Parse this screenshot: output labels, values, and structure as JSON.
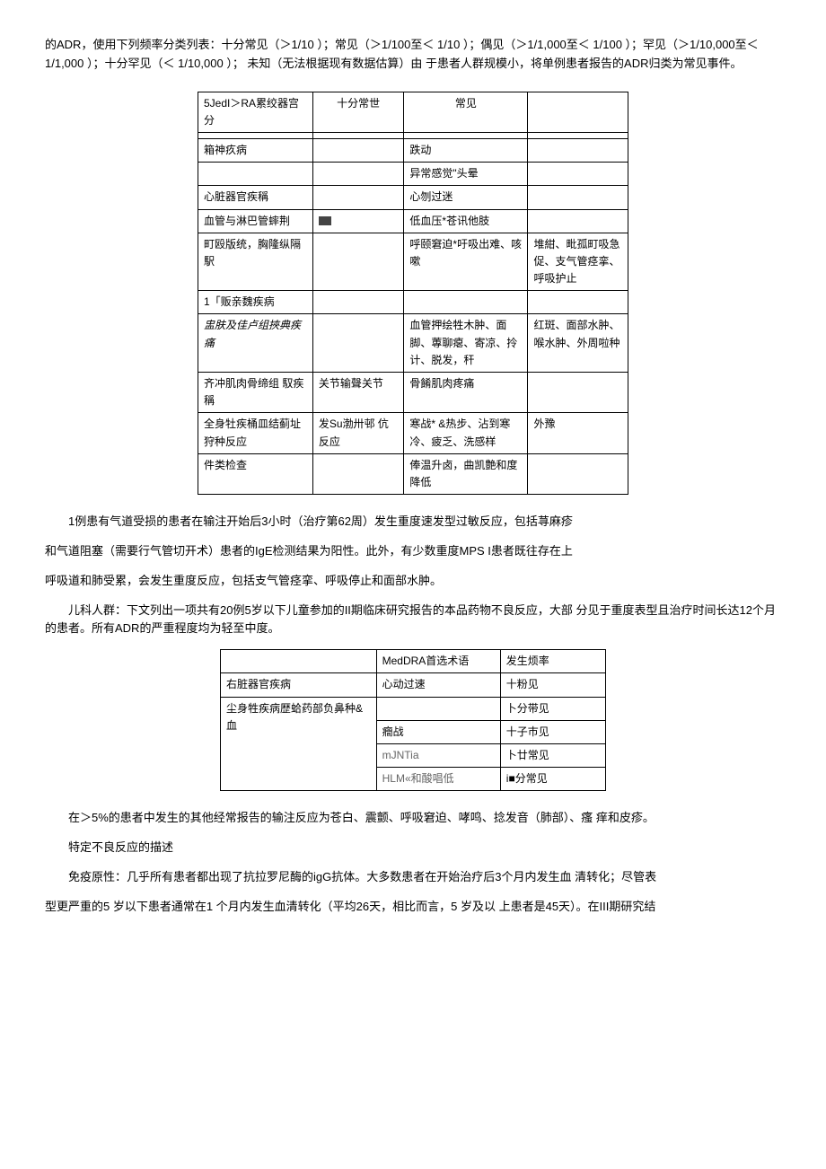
{
  "intro": "的ADR，使用下列频率分类列表：十分常见（＞1/10 ）；常见（＞1/100至＜ 1/10 ）；偶见（＞1/1,000至＜ 1/100 ）；罕见（＞1/10,000至＜ 1/1,000 ）；十分罕见（＜ 1/10,000 ）； 未知（无法根据现有数据估算）由 于患者人群规模小，将单例患者报告的ADR归类为常见事件。",
  "table1": {
    "header": {
      "c1": "5JedI＞RA累绞器宫分",
      "c2": "十分常世",
      "c3": "常见",
      "c4": ""
    },
    "rows": [
      {
        "c1": "",
        "c2": "",
        "c3": "",
        "c4": ""
      },
      {
        "c1": "箱神疚病",
        "c2": "",
        "c3": "跌动",
        "c4": ""
      },
      {
        "c1": "",
        "c2": "",
        "c3": "异常感觉\"头晕",
        "c4": ""
      },
      {
        "c1": "心脏器官疾稱",
        "c2": "",
        "c3": "心刎过迷",
        "c4": ""
      },
      {
        "c1": "血管与淋巴管蟀荆",
        "c2": "■",
        "c3": "低血压*苍讯他肢",
        "c4": ""
      },
      {
        "c1": "町殴版统，胸隆纵隔駅",
        "c2": "",
        "c3": "呼颐窘迫*吁吸出难、咳嗽",
        "c4": "堆紺、毗孤町吸急促、支气管痉挛、呼吸护止"
      },
      {
        "c1": "1「贩亲魏疾病",
        "c2": "",
        "c3": "",
        "c4": ""
      },
      {
        "c1": "盅肤及佳卢组挾典疾痛",
        "c2": "",
        "c3": "血管押绘牲木肿、面脚、蓴聊瘪、寄凉、拎计、脱发，秆",
        "c4": "红斑、面部水肿、喉水肿、外周啦种",
        "ital": true
      },
      {
        "c1": " 齐冲肌肉骨缔组 馭疾稱",
        "c2": "关节输聲关节",
        "c3": "骨餚肌肉疼痛",
        "c4": ""
      },
      {
        "c1": "全身牡疾桶皿结蓟址 狩种反应",
        "c2": "发Su渤卅邨 伉反应",
        "c3": "寒战* &热步、沾到寒冷、疲乏、洗感样",
        "c4": "外豫"
      },
      {
        "c1": "件类检查",
        "c2": "",
        "c3": "俸温升卤，曲凯艶和度降低",
        "c4": ""
      }
    ]
  },
  "p1": "1例患有气道受损的患者在输注开始后3小时（治疗第62周）发生重度速发型过敏反应，包括荨麻疹",
  "p2": "和气道阻塞（需要行气管切开术）患者的IgE检测结果为阳性。此外，有少数重度MPS I患者既往存在上",
  "p3": "呼吸道和肺受累，会发生重度反应，包括支气管痉挛、呼吸停止和面部水肿。",
  "p4": "儿科人群：下文列出一项共有20例5岁以下儿童参加的II期临床研究报告的本品药物不良反应，大部 分见于重度表型且治疗时间长达12个月的患者。所有ADR的严重程度均为轻至中度。",
  "table2": {
    "header": {
      "c1": "",
      "c2": "MedDRA首选术语",
      "c3": "发生烦率"
    },
    "rows": [
      {
        "c1": "右脏器官疾病",
        "c2": "心动过速",
        "c3": "十粉见"
      },
      {
        "c1": "尘身牲疾病歴蛤药部负鼻种&血",
        "c2": "",
        "c3": "卜分带见",
        "rowspan_start": true
      },
      {
        "c2": "癎战",
        "c3": "十子巿见"
      },
      {
        "c2": "mJNTia",
        "c3": "卜廿常见"
      },
      {
        "c2": "HLM«和酸唱低",
        "c3": "i■分常见"
      }
    ]
  },
  "p5": "在＞5%的患者中发生的其他经常报告的输注反应为苍白、震颤、呼吸窘迫、哮鸣、捻发音（肺部）、瘙 痒和皮疹。",
  "p6": "特定不良反应的描述",
  "p7": "免疫原性：几乎所有患者都出现了抗拉罗尼酶的igG抗体。大多数患者在开始治疗后3个月内发生血 清转化；尽管表",
  "p8": "型更严重的5 岁以下患者通常在1 个月内发生血清转化（平均26天，相比而言，5 岁及以 上患者是45天）。在III期研究结"
}
